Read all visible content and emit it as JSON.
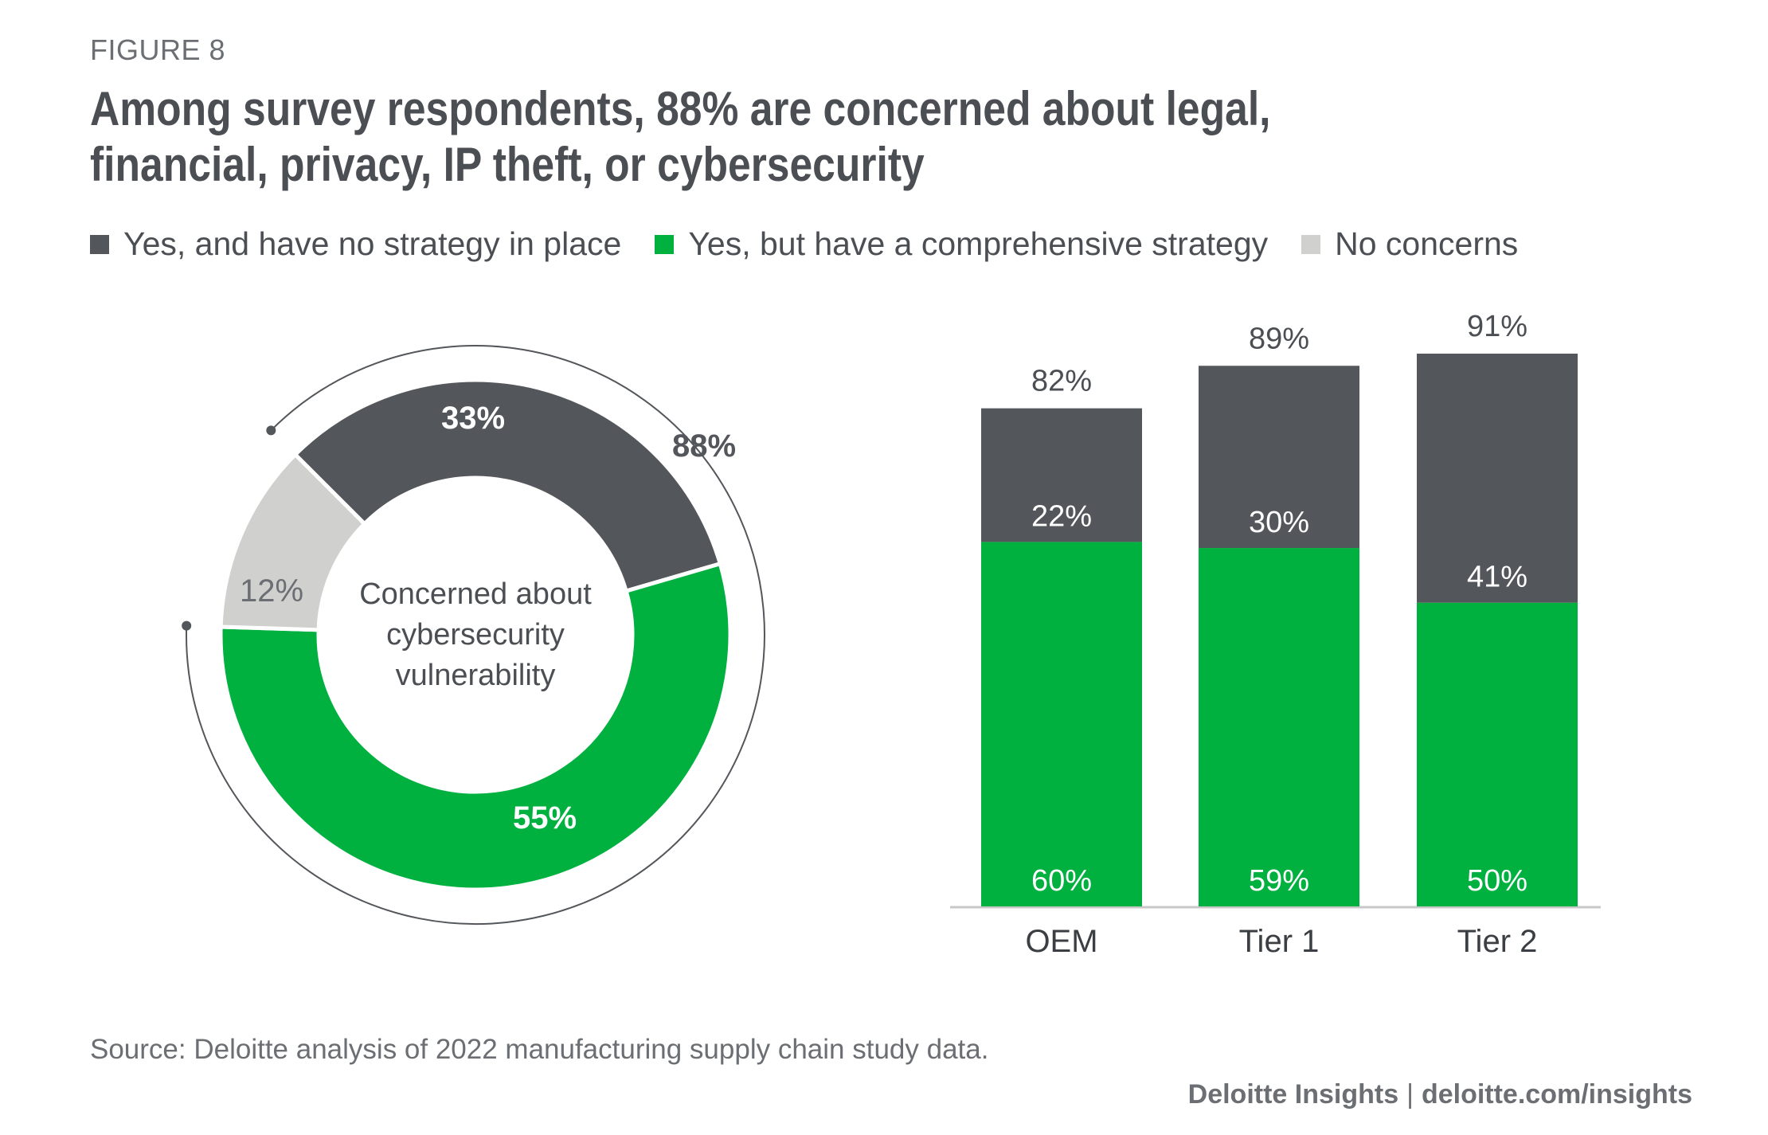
{
  "figure_label": "FIGURE 8",
  "title": "Among survey respondents, 88% are concerned about legal, financial, privacy, IP theft, or cybersecurity",
  "legend": [
    {
      "label": "Yes, and have no strategy in place",
      "color": "#53565a"
    },
    {
      "label": "Yes, but have a comprehensive strategy",
      "color": "#00b140"
    },
    {
      "label": "No concerns",
      "color": "#d0d0ce"
    }
  ],
  "source": "Source: Deloitte analysis of 2022 manufacturing supply chain study data.",
  "credit": {
    "brand": "Deloitte Insights",
    "separator": "|",
    "url": "deloitte.com/insights"
  },
  "chart_data": [
    {
      "type": "pie",
      "center_label": "Concerned about cybersecurity vulnerability",
      "slices": [
        {
          "label": "33%",
          "value": 33,
          "color": "#53565a"
        },
        {
          "label": "55%",
          "value": 55,
          "color": "#00b140"
        },
        {
          "label": "12%",
          "value": 12,
          "color": "#d0d0ce"
        }
      ],
      "total_concerned": {
        "label": "88%",
        "value": 88
      }
    },
    {
      "type": "bar",
      "categories": [
        "OEM",
        "Tier 1",
        "Tier 2"
      ],
      "series": [
        {
          "name": "Yes, but have a comprehensive strategy",
          "values": [
            60,
            59,
            50
          ],
          "color": "#00b140"
        },
        {
          "name": "Yes, and have no strategy in place",
          "values": [
            22,
            30,
            41
          ],
          "color": "#53565a"
        }
      ],
      "totals": [
        82,
        89,
        91
      ],
      "ylim": [
        0,
        91
      ]
    }
  ]
}
